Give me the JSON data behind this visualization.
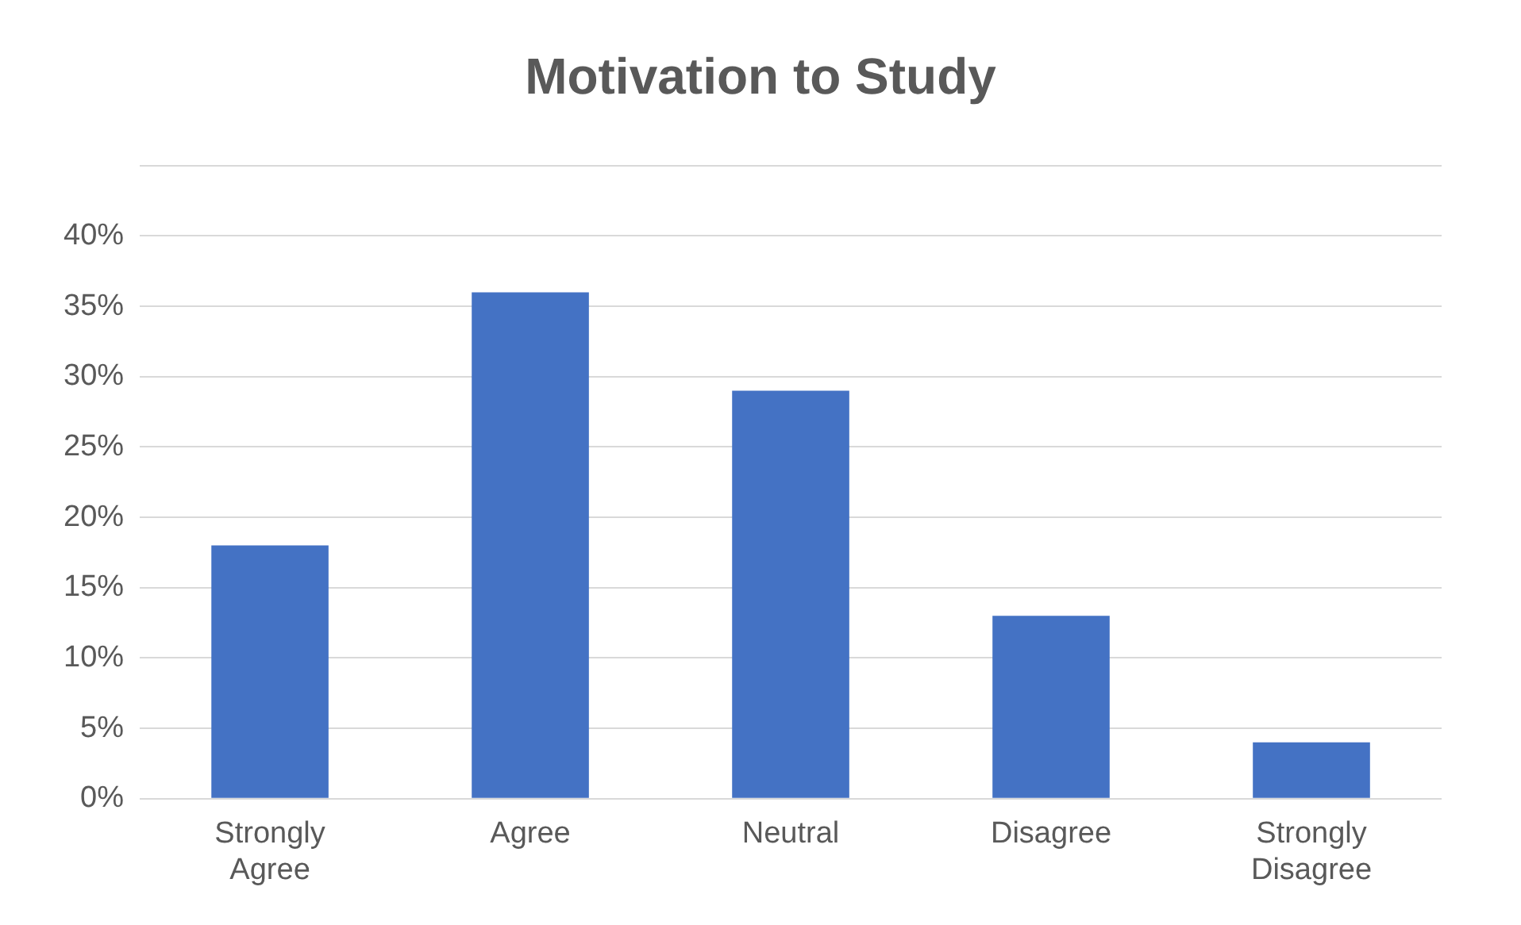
{
  "chart_data": {
    "type": "bar",
    "title": "Motivation to Study",
    "categories": [
      "Strongly Agree",
      "Agree",
      "Neutral",
      "Disagree",
      "Strongly Disagree"
    ],
    "values": [
      18,
      36,
      29,
      13,
      4
    ],
    "color": "#4472c4",
    "ylim": [
      0,
      45
    ],
    "yticks": [
      {
        "value": 0,
        "label": "0%"
      },
      {
        "value": 5,
        "label": "5%"
      },
      {
        "value": 10,
        "label": "10%"
      },
      {
        "value": 15,
        "label": "15%"
      },
      {
        "value": 20,
        "label": "20%"
      },
      {
        "value": 25,
        "label": "25%"
      },
      {
        "value": 30,
        "label": "30%"
      },
      {
        "value": 35,
        "label": "35%"
      },
      {
        "value": 40,
        "label": "40%"
      },
      {
        "value": 45,
        "label": null
      }
    ],
    "grid": "y"
  }
}
